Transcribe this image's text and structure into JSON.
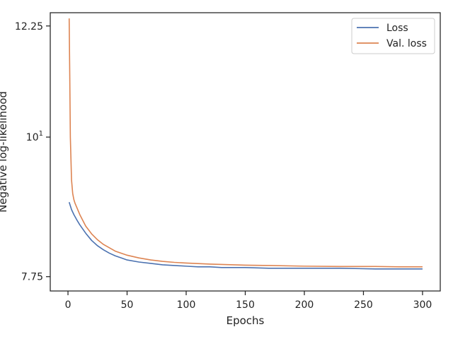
{
  "chart_data": {
    "type": "line",
    "title": "",
    "xlabel": "Epochs",
    "ylabel": "Negative log-likelihood",
    "yscale": "log",
    "xlim": [
      -15,
      315
    ],
    "ylim": [
      7.55,
      12.55
    ],
    "x_ticks": [
      {
        "value": 0,
        "label": "0"
      },
      {
        "value": 50,
        "label": "50"
      },
      {
        "value": 100,
        "label": "100"
      },
      {
        "value": 150,
        "label": "150"
      },
      {
        "value": 200,
        "label": "200"
      },
      {
        "value": 250,
        "label": "250"
      },
      {
        "value": 300,
        "label": "300"
      }
    ],
    "y_ticks": [
      {
        "value": 7.75,
        "label": "7.75",
        "superscript": ""
      },
      {
        "value": 10,
        "label": "10",
        "superscript": "1"
      },
      {
        "value": 12.25,
        "label": "12.25",
        "superscript": ""
      }
    ],
    "grid": false,
    "legend_position": "top-right",
    "series": [
      {
        "name": "Loss",
        "color": "#4c72b0",
        "x": [
          1,
          3,
          5,
          8,
          10,
          15,
          20,
          25,
          30,
          35,
          40,
          45,
          50,
          60,
          70,
          80,
          90,
          100,
          110,
          120,
          130,
          150,
          170,
          200,
          230,
          260,
          280,
          300
        ],
        "y": [
          8.88,
          8.76,
          8.68,
          8.58,
          8.52,
          8.39,
          8.28,
          8.2,
          8.14,
          8.09,
          8.05,
          8.02,
          7.99,
          7.96,
          7.94,
          7.92,
          7.91,
          7.9,
          7.89,
          7.89,
          7.88,
          7.88,
          7.87,
          7.87,
          7.87,
          7.86,
          7.86,
          7.86
        ]
      },
      {
        "name": "Val. loss",
        "color": "#dd8452",
        "x": [
          1,
          1.5,
          2,
          3,
          4,
          5,
          6,
          8,
          10,
          15,
          20,
          25,
          30,
          40,
          50,
          60,
          70,
          80,
          90,
          100,
          120,
          150,
          170,
          200,
          230,
          260,
          280,
          300
        ],
        "y": [
          12.42,
          11.2,
          10.0,
          9.25,
          9.02,
          8.92,
          8.86,
          8.77,
          8.68,
          8.5,
          8.38,
          8.29,
          8.22,
          8.12,
          8.06,
          8.02,
          7.99,
          7.97,
          7.955,
          7.945,
          7.93,
          7.915,
          7.91,
          7.9,
          7.895,
          7.895,
          7.89,
          7.89
        ]
      }
    ]
  }
}
